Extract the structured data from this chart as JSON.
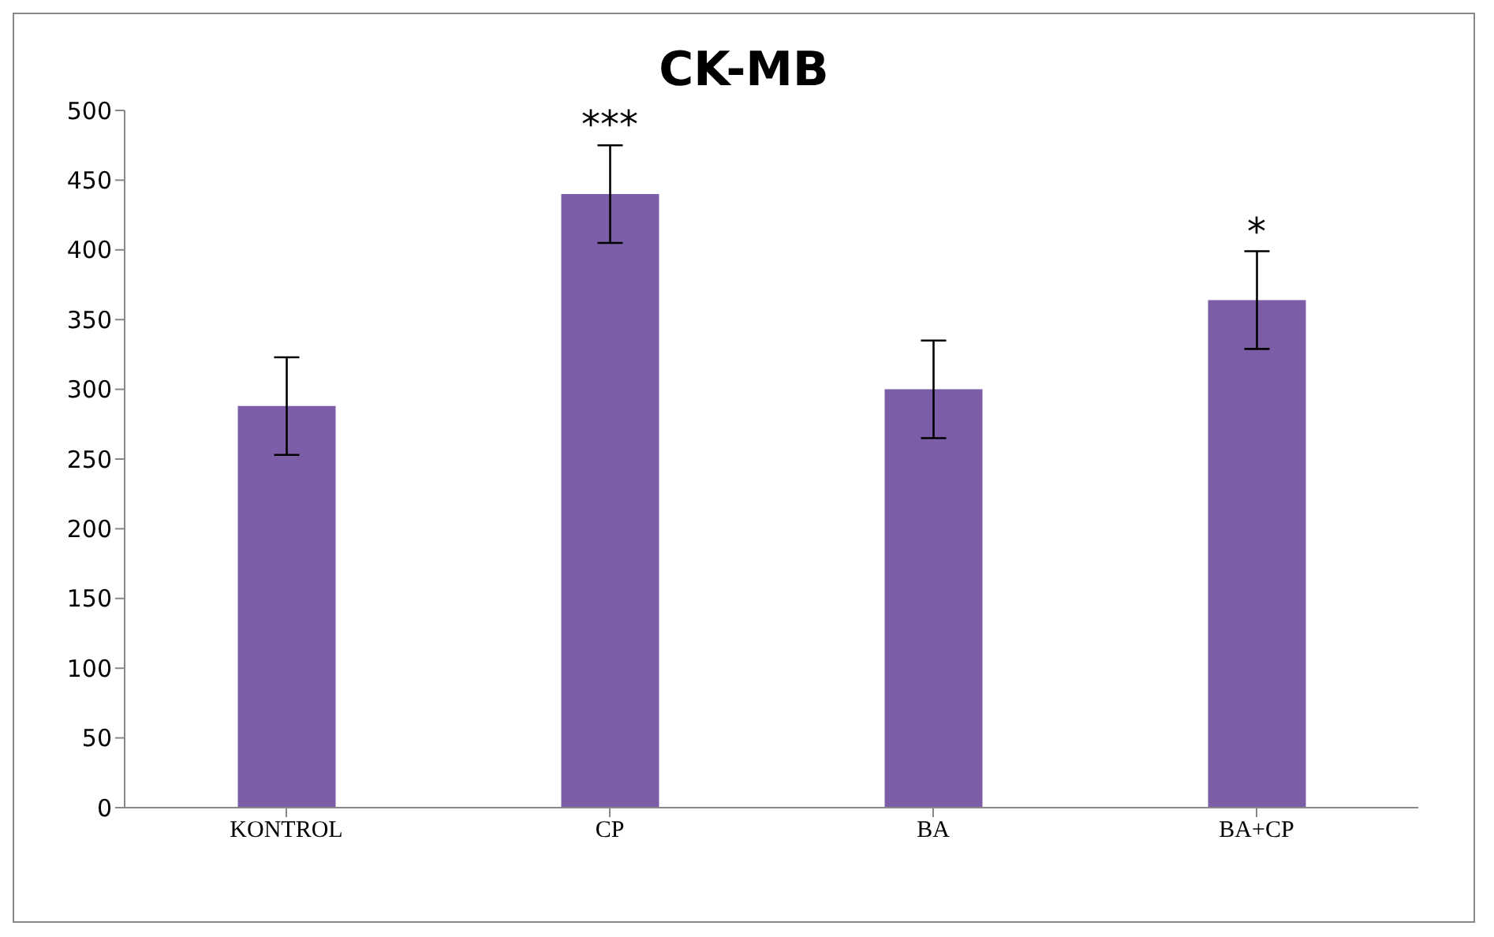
{
  "chart_data": {
    "type": "bar",
    "title": "CK-MB",
    "categories": [
      "KONTROL",
      "CP",
      "BA",
      "BA+CP"
    ],
    "values": [
      288,
      440,
      300,
      364
    ],
    "errors": [
      35,
      35,
      35,
      35
    ],
    "color": "#7b5ea7",
    "ylim": [
      0,
      500
    ],
    "yticks": [
      0,
      50,
      100,
      150,
      200,
      250,
      300,
      350,
      400,
      450,
      500
    ],
    "grid": false,
    "legend": false,
    "annotations": [
      {
        "text": "***",
        "x": "CP",
        "y": 475
      },
      {
        "text": "*",
        "x": "BA+CP",
        "y": 398
      }
    ]
  }
}
